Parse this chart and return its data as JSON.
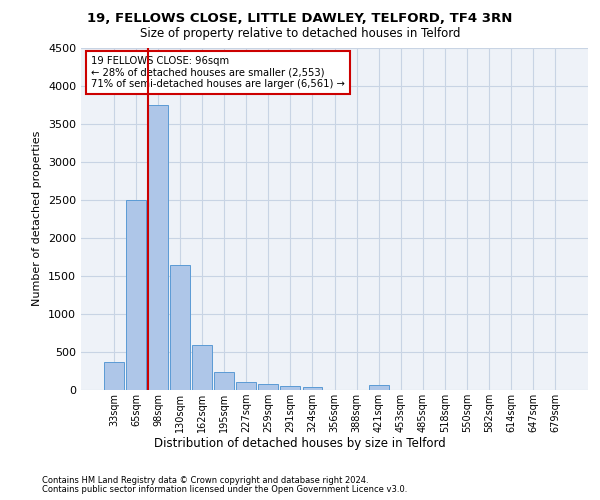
{
  "title1": "19, FELLOWS CLOSE, LITTLE DAWLEY, TELFORD, TF4 3RN",
  "title2": "Size of property relative to detached houses in Telford",
  "xlabel": "Distribution of detached houses by size in Telford",
  "ylabel": "Number of detached properties",
  "footnote1": "Contains HM Land Registry data © Crown copyright and database right 2024.",
  "footnote2": "Contains public sector information licensed under the Open Government Licence v3.0.",
  "annotation_line1": "19 FELLOWS CLOSE: 96sqm",
  "annotation_line2": "← 28% of detached houses are smaller (2,553)",
  "annotation_line3": "71% of semi-detached houses are larger (6,561) →",
  "categories": [
    "33sqm",
    "65sqm",
    "98sqm",
    "130sqm",
    "162sqm",
    "195sqm",
    "227sqm",
    "259sqm",
    "291sqm",
    "324sqm",
    "356sqm",
    "388sqm",
    "421sqm",
    "453sqm",
    "485sqm",
    "518sqm",
    "550sqm",
    "582sqm",
    "614sqm",
    "647sqm",
    "679sqm"
  ],
  "values": [
    370,
    2500,
    3750,
    1640,
    590,
    230,
    110,
    75,
    55,
    40,
    0,
    0,
    60,
    0,
    0,
    0,
    0,
    0,
    0,
    0,
    0
  ],
  "bar_color": "#aec6e8",
  "bar_edge_color": "#5b9bd5",
  "grid_color": "#c8d4e4",
  "bg_color": "#eef2f8",
  "red_line_color": "#cc0000",
  "annotation_box_color": "#cc0000",
  "ylim": [
    0,
    4500
  ],
  "yticks": [
    0,
    500,
    1000,
    1500,
    2000,
    2500,
    3000,
    3500,
    4000,
    4500
  ]
}
